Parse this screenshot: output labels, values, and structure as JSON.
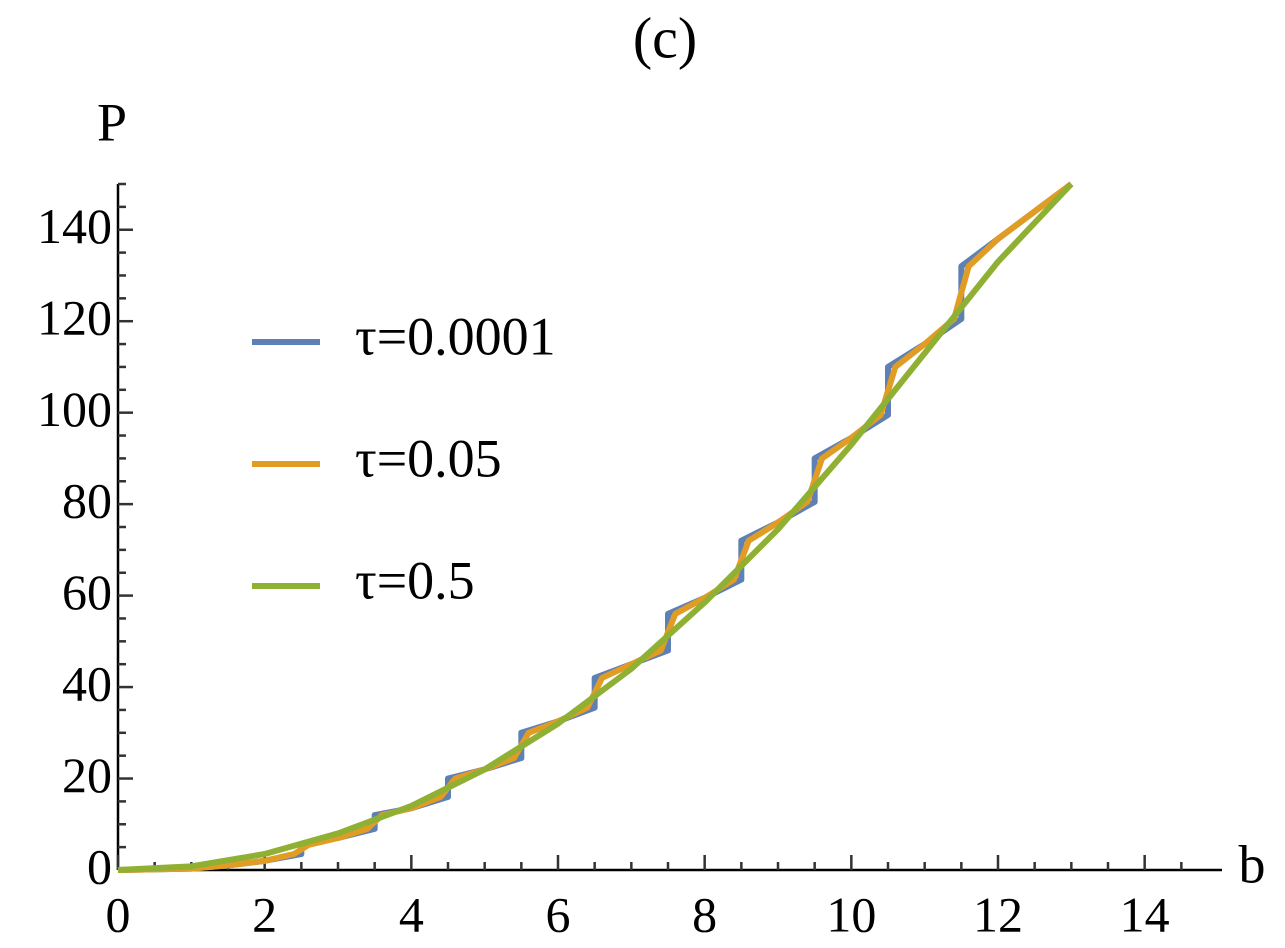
{
  "chart_data": {
    "type": "line",
    "title": "(c)",
    "x_label": "b",
    "y_label": "P",
    "xlim": [
      0,
      15
    ],
    "ylim": [
      0,
      150
    ],
    "xticks": [
      0,
      2,
      4,
      6,
      8,
      10,
      12,
      14
    ],
    "yticks": [
      0,
      20,
      40,
      60,
      80,
      100,
      120,
      140
    ],
    "series": [
      {
        "name": "τ=0.0001",
        "color": "#5e81b5",
        "x": [
          0,
          1,
          1.5,
          2,
          2.5,
          2.5,
          3,
          3.5,
          3.5,
          4,
          4.5,
          4.5,
          5,
          5.5,
          5.5,
          6,
          6.5,
          6.5,
          7,
          7.5,
          7.5,
          8,
          8.5,
          8.5,
          9,
          9.5,
          9.5,
          10,
          10.5,
          10.5,
          11,
          11.5,
          11.5,
          12,
          12.5,
          13
        ],
        "values": [
          0,
          0.3,
          1,
          2,
          3.5,
          5.5,
          7,
          9,
          12,
          13.5,
          16,
          20,
          22,
          24.5,
          30,
          32.5,
          35.5,
          42,
          45,
          48,
          56,
          59.5,
          63.5,
          72,
          76,
          80.5,
          90,
          94.5,
          99.5,
          110,
          115,
          120.5,
          132,
          138,
          144,
          150
        ]
      },
      {
        "name": "τ=0.05",
        "color": "#e19c24",
        "x": [
          0,
          1,
          1.5,
          2,
          2.4,
          2.6,
          3,
          3.4,
          3.6,
          4,
          4.4,
          4.6,
          5,
          5.4,
          5.6,
          6,
          6.4,
          6.6,
          7,
          7.4,
          7.6,
          8,
          8.4,
          8.6,
          9,
          9.4,
          9.6,
          10,
          10.4,
          10.6,
          11,
          11.4,
          11.6,
          12,
          12.5,
          13
        ],
        "values": [
          0,
          0.3,
          1,
          2,
          3.5,
          5.5,
          7,
          9,
          12,
          13.5,
          16,
          20,
          22,
          24.5,
          30,
          32.5,
          35.5,
          42,
          45,
          48,
          56,
          59.5,
          63.5,
          72,
          76,
          80.5,
          90,
          94.5,
          99.5,
          110,
          115,
          120.5,
          132,
          138,
          144,
          150
        ]
      },
      {
        "name": "τ=0.5",
        "color": "#8fb032",
        "x": [
          0,
          1,
          2,
          3,
          4,
          5,
          6,
          7,
          8,
          9,
          10,
          11,
          12,
          13
        ],
        "values": [
          0,
          0.8,
          3.5,
          8,
          14,
          22,
          32,
          44,
          58.5,
          74.5,
          93,
          113,
          133,
          150
        ]
      }
    ]
  }
}
